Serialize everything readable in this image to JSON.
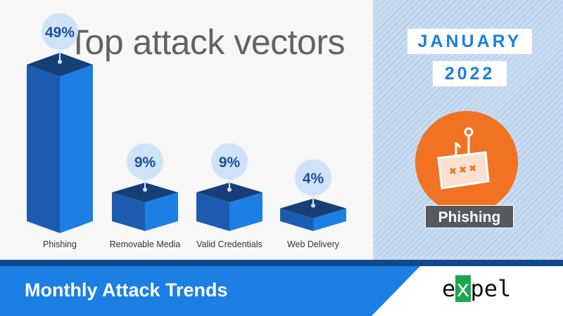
{
  "chart_data": {
    "type": "bar",
    "title": "Top attack vectors",
    "categories": [
      "Phishing",
      "Removable Media",
      "Valid Credentials",
      "Web Delivery"
    ],
    "values": [
      49,
      9,
      9,
      4
    ],
    "data_labels": [
      "49%",
      "9%",
      "9%",
      "4%"
    ],
    "unit": "%",
    "grid": false,
    "colors": {
      "top": "#163f78",
      "left": "#1c5cb0",
      "right": "#1b7fe3",
      "bubble": "#cfe3f8",
      "label": "#1b4f9a"
    }
  },
  "date": {
    "month": "JANUARY",
    "year": "2022"
  },
  "featured": {
    "label": "Phishing",
    "icon": "fish-hook-icon",
    "color": "#f07323"
  },
  "footer": {
    "title": "Monthly Attack Trends",
    "brand": "expel",
    "brand_x": "x",
    "brand_pre": "e",
    "brand_post": "pel"
  }
}
